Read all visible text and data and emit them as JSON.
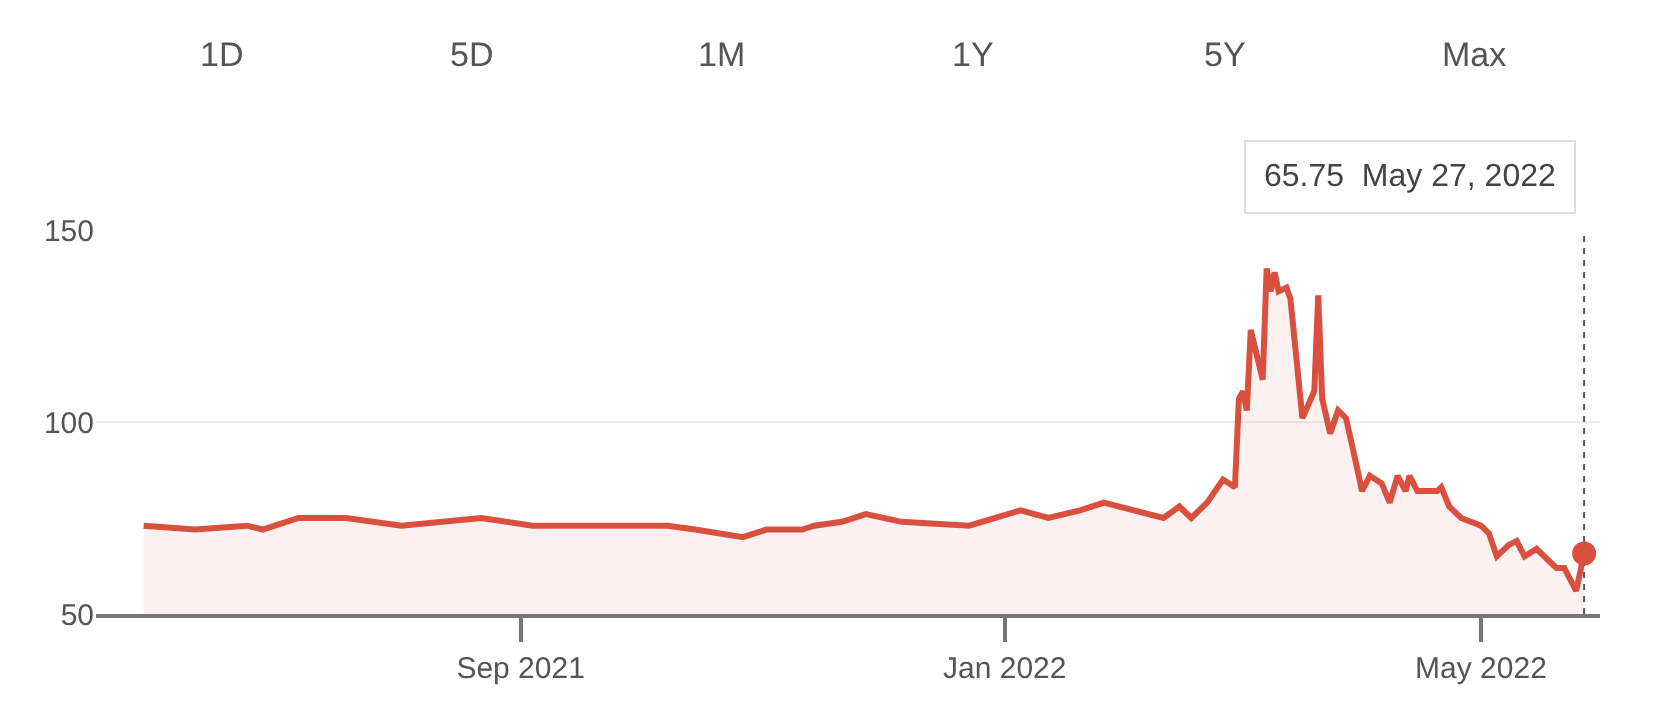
{
  "chart_data": {
    "type": "area",
    "x": [
      "2021-05-29",
      "2021-06-11",
      "2021-06-24",
      "2021-06-28",
      "2021-07-07",
      "2021-07-19",
      "2021-08-02",
      "2021-08-22",
      "2021-09-04",
      "2021-09-21",
      "2021-10-08",
      "2021-10-15",
      "2021-10-27",
      "2021-11-02",
      "2021-11-11",
      "2021-11-14",
      "2021-11-21",
      "2021-11-27",
      "2021-12-06",
      "2021-12-23",
      "2022-01-05",
      "2022-01-12",
      "2022-01-20",
      "2022-01-26",
      "2022-02-10",
      "2022-02-14",
      "2022-02-17",
      "2022-02-21",
      "2022-02-25",
      "2022-02-28",
      "2022-03-01",
      "2022-03-02",
      "2022-03-03",
      "2022-03-04",
      "2022-03-07",
      "2022-03-08",
      "2022-03-09",
      "2022-03-10",
      "2022-03-11",
      "2022-03-13",
      "2022-03-14",
      "2022-03-17",
      "2022-03-20",
      "2022-03-21",
      "2022-03-22",
      "2022-03-24",
      "2022-03-26",
      "2022-03-28",
      "2022-03-31",
      "2022-04-01",
      "2022-04-03",
      "2022-04-06",
      "2022-04-08",
      "2022-04-10",
      "2022-04-12",
      "2022-04-13",
      "2022-04-15",
      "2022-04-20",
      "2022-04-21",
      "2022-04-23",
      "2022-04-26",
      "2022-05-01",
      "2022-05-03",
      "2022-05-05",
      "2022-05-08",
      "2022-05-10",
      "2022-05-12",
      "2022-05-15",
      "2022-05-20",
      "2022-05-22",
      "2022-05-25",
      "2022-05-27"
    ],
    "series": [
      {
        "color": "#d9503f",
        "values": [
          73,
          72,
          73,
          72,
          75,
          75,
          73,
          75,
          73,
          73,
          73,
          72,
          70,
          72,
          72,
          73,
          74,
          76,
          74,
          73,
          77,
          75,
          77,
          79,
          75,
          78,
          75,
          79,
          85,
          83,
          106,
          108,
          103,
          124,
          111,
          140,
          134,
          139,
          134,
          135,
          132,
          101,
          108,
          133,
          106,
          97,
          103,
          101,
          87,
          82,
          86,
          84,
          79,
          86,
          82,
          86,
          82,
          82,
          83,
          78,
          75,
          73,
          71,
          65,
          68,
          69,
          65,
          67,
          62,
          62,
          56,
          65.75
        ]
      }
    ],
    "xlim": [
      "2021-05-17",
      "2022-05-31"
    ],
    "xticks": [
      {
        "value": "2021-09-01",
        "label": "Sep 2021"
      },
      {
        "value": "2022-01-01",
        "label": "Jan 2022"
      },
      {
        "value": "2022-05-01",
        "label": "May 2022"
      }
    ],
    "ylim": [
      50,
      150
    ],
    "yticks": [
      50,
      100,
      150
    ],
    "grid": "y",
    "legend": false,
    "marker": "none",
    "line_style": "solid",
    "ref_lines": [
      {
        "axis": "x",
        "value": "2022-05-27",
        "color": "#555555",
        "line_style": "dotted"
      }
    ],
    "annotations": [
      "65.75  May 27, 2022",
      "1D",
      "5D",
      "1M",
      "1Y",
      "5Y",
      "Max"
    ]
  }
}
